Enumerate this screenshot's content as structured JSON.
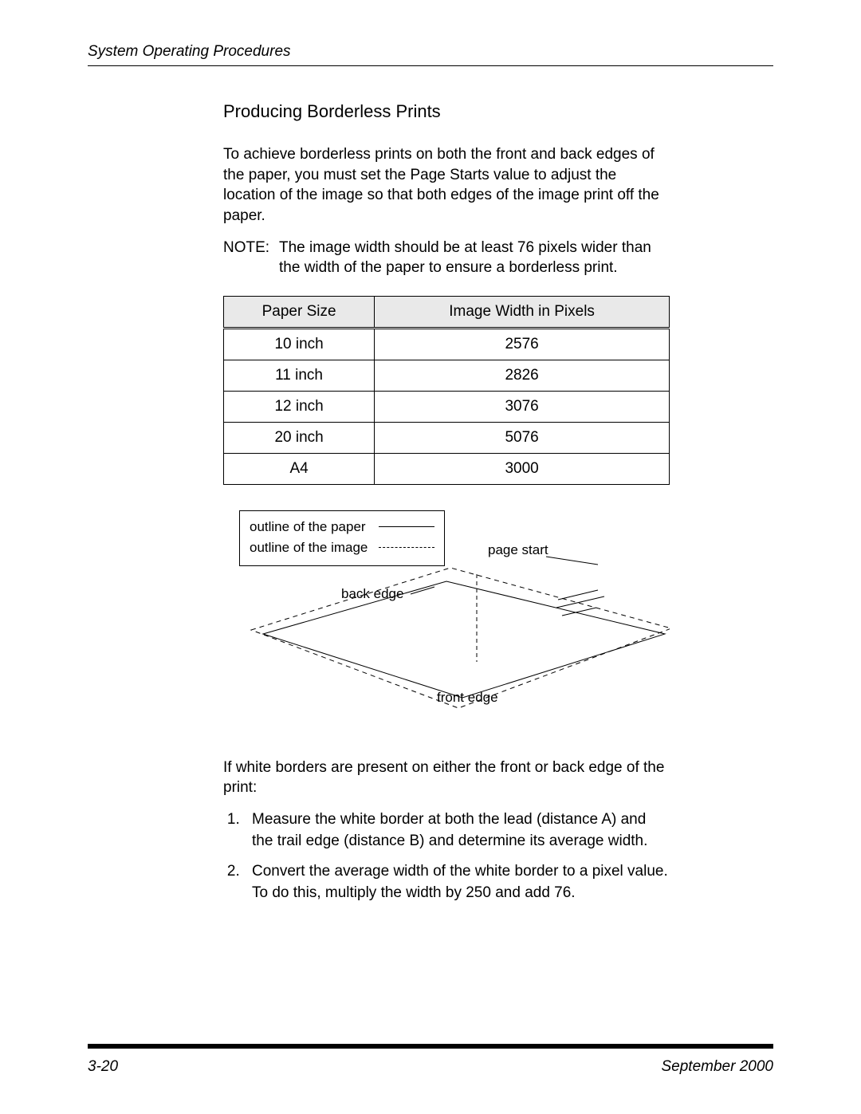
{
  "header": {
    "running_title": "System Operating Procedures"
  },
  "section": {
    "heading": "Producing Borderless Prints",
    "intro": "To achieve borderless prints on both the front and back edges of the paper, you must set the Page Starts value to adjust the location of the image so that both edges of the image print off the paper.",
    "note_label": "NOTE:",
    "note_text": "The image width should be at least 76 pixels wider than the width of the paper to ensure a borderless print."
  },
  "table": {
    "columns": [
      "Paper Size",
      "Image Width in Pixels"
    ],
    "rows": [
      [
        "10 inch",
        "2576"
      ],
      [
        "11 inch",
        "2826"
      ],
      [
        "12 inch",
        "3076"
      ],
      [
        "20 inch",
        "5076"
      ],
      [
        "A4",
        "3000"
      ]
    ],
    "header_bg": "#e9e9e9",
    "border_color": "#000000"
  },
  "diagram": {
    "legend": {
      "paper_label": "outline of the paper",
      "image_label": "outline of the image"
    },
    "labels": {
      "page_start": "page start",
      "back_edge": "back edge",
      "front_edge": "front edge"
    },
    "stroke_color": "#000000",
    "stroke_width": 1,
    "dash_pattern": "6,5"
  },
  "after_diagram": "If white borders are present on either the front or back edge of the print:",
  "steps": [
    "Measure the white border at both the lead (distance A) and the trail edge (distance B) and determine its average width.",
    "Convert the average width of the white border to a pixel value. To do this, multiply the width by 250 and add 76."
  ],
  "footer": {
    "page_num": "3-20",
    "date": "September 2000"
  }
}
